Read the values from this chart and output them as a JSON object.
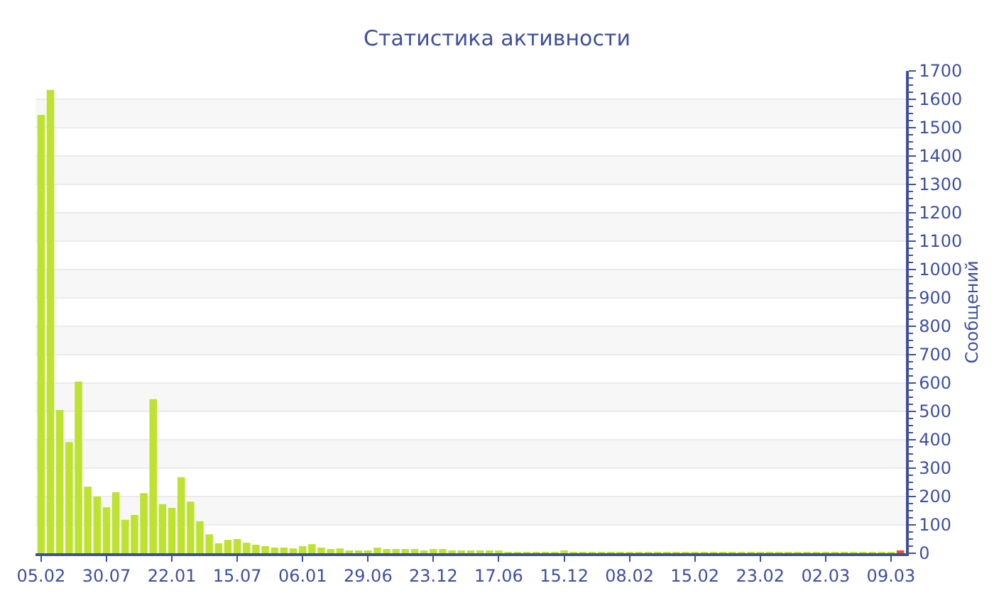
{
  "chart_data": {
    "type": "bar",
    "title": "Статистика активности",
    "ylabel": "Сообщений",
    "categories": [
      "05.02",
      null,
      null,
      null,
      null,
      null,
      null,
      "30.07",
      null,
      null,
      null,
      null,
      null,
      null,
      "22.01",
      null,
      null,
      null,
      null,
      null,
      null,
      "15.07",
      null,
      null,
      null,
      null,
      null,
      null,
      "06.01",
      null,
      null,
      null,
      null,
      null,
      null,
      "29.06",
      null,
      null,
      null,
      null,
      null,
      null,
      "23.12",
      null,
      null,
      null,
      null,
      null,
      null,
      "17.06",
      null,
      null,
      null,
      null,
      null,
      null,
      "15.12",
      null,
      null,
      null,
      null,
      null,
      null,
      "08.02",
      null,
      null,
      null,
      null,
      null,
      null,
      "15.02",
      null,
      null,
      null,
      null,
      null,
      null,
      "23.02",
      null,
      null,
      null,
      null,
      null,
      null,
      "02.03",
      null,
      null,
      null,
      null,
      null,
      null,
      "09.03",
      null
    ],
    "values": [
      1545,
      1633,
      505,
      392,
      605,
      235,
      200,
      162,
      215,
      118,
      135,
      212,
      543,
      173,
      160,
      268,
      182,
      113,
      67,
      35,
      47,
      50,
      37,
      30,
      25,
      20,
      20,
      17,
      25,
      32,
      20,
      15,
      17,
      10,
      7,
      8,
      20,
      15,
      15,
      15,
      15,
      10,
      15,
      15,
      7,
      7,
      7,
      7,
      7,
      7,
      5,
      5,
      5,
      5,
      5,
      5,
      10,
      5,
      5,
      5,
      5,
      5,
      5,
      5,
      5,
      5,
      5,
      5,
      5,
      5,
      5,
      5,
      5,
      5,
      5,
      5,
      5,
      5,
      5,
      5,
      5,
      5,
      5,
      5,
      5,
      5,
      5,
      5,
      5,
      5,
      5,
      5,
      10
    ],
    "colors": [
      "#bde22f",
      "#bde22f",
      "#bde22f",
      "#bde22f",
      "#bde22f",
      "#bde22f",
      "#bde22f",
      "#bde22f",
      "#bde22f",
      "#bde22f",
      "#bde22f",
      "#bde22f",
      "#bde22f",
      "#bde22f",
      "#bde22f",
      "#bde22f",
      "#bde22f",
      "#bde22f",
      "#bde22f",
      "#bde22f",
      "#bde22f",
      "#bde22f",
      "#bde22f",
      "#bde22f",
      "#bde22f",
      "#bde22f",
      "#bde22f",
      "#bde22f",
      "#bde22f",
      "#bde22f",
      "#bde22f",
      "#bde22f",
      "#bde22f",
      "#bde22f",
      "#bde22f",
      "#bde22f",
      "#bde22f",
      "#bde22f",
      "#bde22f",
      "#bde22f",
      "#bde22f",
      "#bde22f",
      "#bde22f",
      "#bde22f",
      "#bde22f",
      "#bde22f",
      "#bde22f",
      "#bde22f",
      "#bde22f",
      "#bde22f",
      "#bde22f",
      "#bde22f",
      "#bde22f",
      "#bde22f",
      "#bde22f",
      "#bde22f",
      "#bde22f",
      "#bde22f",
      "#bde22f",
      "#bde22f",
      "#bde22f",
      "#bde22f",
      "#bde22f",
      "#bde22f",
      "#bde22f",
      "#bde22f",
      "#bde22f",
      "#bde22f",
      "#bde22f",
      "#bde22f",
      "#bde22f",
      "#bde22f",
      "#bde22f",
      "#bde22f",
      "#bde22f",
      "#bde22f",
      "#bde22f",
      "#bde22f",
      "#bde22f",
      "#bde22f",
      "#bde22f",
      "#bde22f",
      "#bde22f",
      "#bde22f",
      "#bde22f",
      "#bde22f",
      "#bde22f",
      "#bde22f",
      "#bde22f",
      "#bde22f",
      "#bde22f",
      "#bde22f",
      "#e8502a"
    ],
    "ylim": [
      0,
      1700
    ],
    "yticks": [
      0,
      100,
      200,
      300,
      400,
      500,
      600,
      700,
      800,
      900,
      1000,
      1100,
      1200,
      1300,
      1400,
      1500,
      1600,
      1700
    ],
    "grid": "y"
  }
}
